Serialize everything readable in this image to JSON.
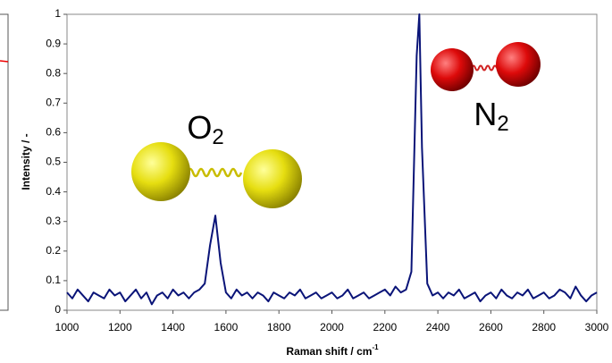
{
  "chart_data": {
    "type": "line",
    "x_label": "Raman shift / cm",
    "x_label_sup": "-1",
    "y_label": "Intensity / -",
    "annotations": [
      {
        "text": "O",
        "sub": "2"
      },
      {
        "text": "N",
        "sub": "2"
      }
    ],
    "x": [
      1000,
      1020,
      1040,
      1060,
      1080,
      1100,
      1120,
      1140,
      1160,
      1180,
      1200,
      1220,
      1240,
      1260,
      1280,
      1300,
      1320,
      1340,
      1360,
      1380,
      1400,
      1420,
      1440,
      1460,
      1480,
      1500,
      1520,
      1540,
      1560,
      1580,
      1600,
      1620,
      1640,
      1660,
      1680,
      1700,
      1720,
      1740,
      1760,
      1780,
      1800,
      1820,
      1840,
      1860,
      1880,
      1900,
      1920,
      1940,
      1960,
      1980,
      2000,
      2020,
      2040,
      2060,
      2080,
      2100,
      2120,
      2140,
      2160,
      2180,
      2200,
      2220,
      2240,
      2260,
      2280,
      2300,
      2320,
      2330,
      2340,
      2360,
      2380,
      2400,
      2420,
      2440,
      2460,
      2480,
      2500,
      2520,
      2540,
      2560,
      2580,
      2600,
      2620,
      2640,
      2660,
      2680,
      2700,
      2720,
      2740,
      2760,
      2780,
      2800,
      2820,
      2840,
      2860,
      2880,
      2900,
      2920,
      2940,
      2960,
      2980,
      3000
    ],
    "values": [
      0.06,
      0.04,
      0.07,
      0.05,
      0.03,
      0.06,
      0.05,
      0.04,
      0.07,
      0.05,
      0.06,
      0.03,
      0.05,
      0.07,
      0.04,
      0.06,
      0.02,
      0.05,
      0.06,
      0.04,
      0.07,
      0.05,
      0.06,
      0.04,
      0.06,
      0.07,
      0.09,
      0.22,
      0.32,
      0.16,
      0.06,
      0.04,
      0.07,
      0.05,
      0.06,
      0.04,
      0.06,
      0.05,
      0.03,
      0.06,
      0.05,
      0.04,
      0.06,
      0.05,
      0.07,
      0.04,
      0.05,
      0.06,
      0.04,
      0.05,
      0.06,
      0.04,
      0.05,
      0.07,
      0.04,
      0.05,
      0.06,
      0.04,
      0.05,
      0.06,
      0.07,
      0.05,
      0.08,
      0.06,
      0.07,
      0.13,
      0.86,
      1,
      0.55,
      0.09,
      0.05,
      0.06,
      0.04,
      0.06,
      0.05,
      0.07,
      0.04,
      0.05,
      0.06,
      0.03,
      0.05,
      0.06,
      0.04,
      0.07,
      0.05,
      0.04,
      0.06,
      0.05,
      0.07,
      0.04,
      0.05,
      0.06,
      0.04,
      0.05,
      0.07,
      0.06,
      0.04,
      0.08,
      0.05,
      0.03,
      0.05,
      0.06
    ],
    "color": "#0a1478",
    "xlim": [
      1000,
      3000
    ],
    "xticks": [
      1000,
      1200,
      1400,
      1600,
      1800,
      2000,
      2200,
      2400,
      2600,
      2800,
      3000
    ],
    "ylim": [
      0,
      1
    ],
    "yticks": [
      0,
      0.1,
      0.2,
      0.3,
      0.4,
      0.5,
      0.6,
      0.7,
      0.8,
      0.9,
      1
    ]
  }
}
